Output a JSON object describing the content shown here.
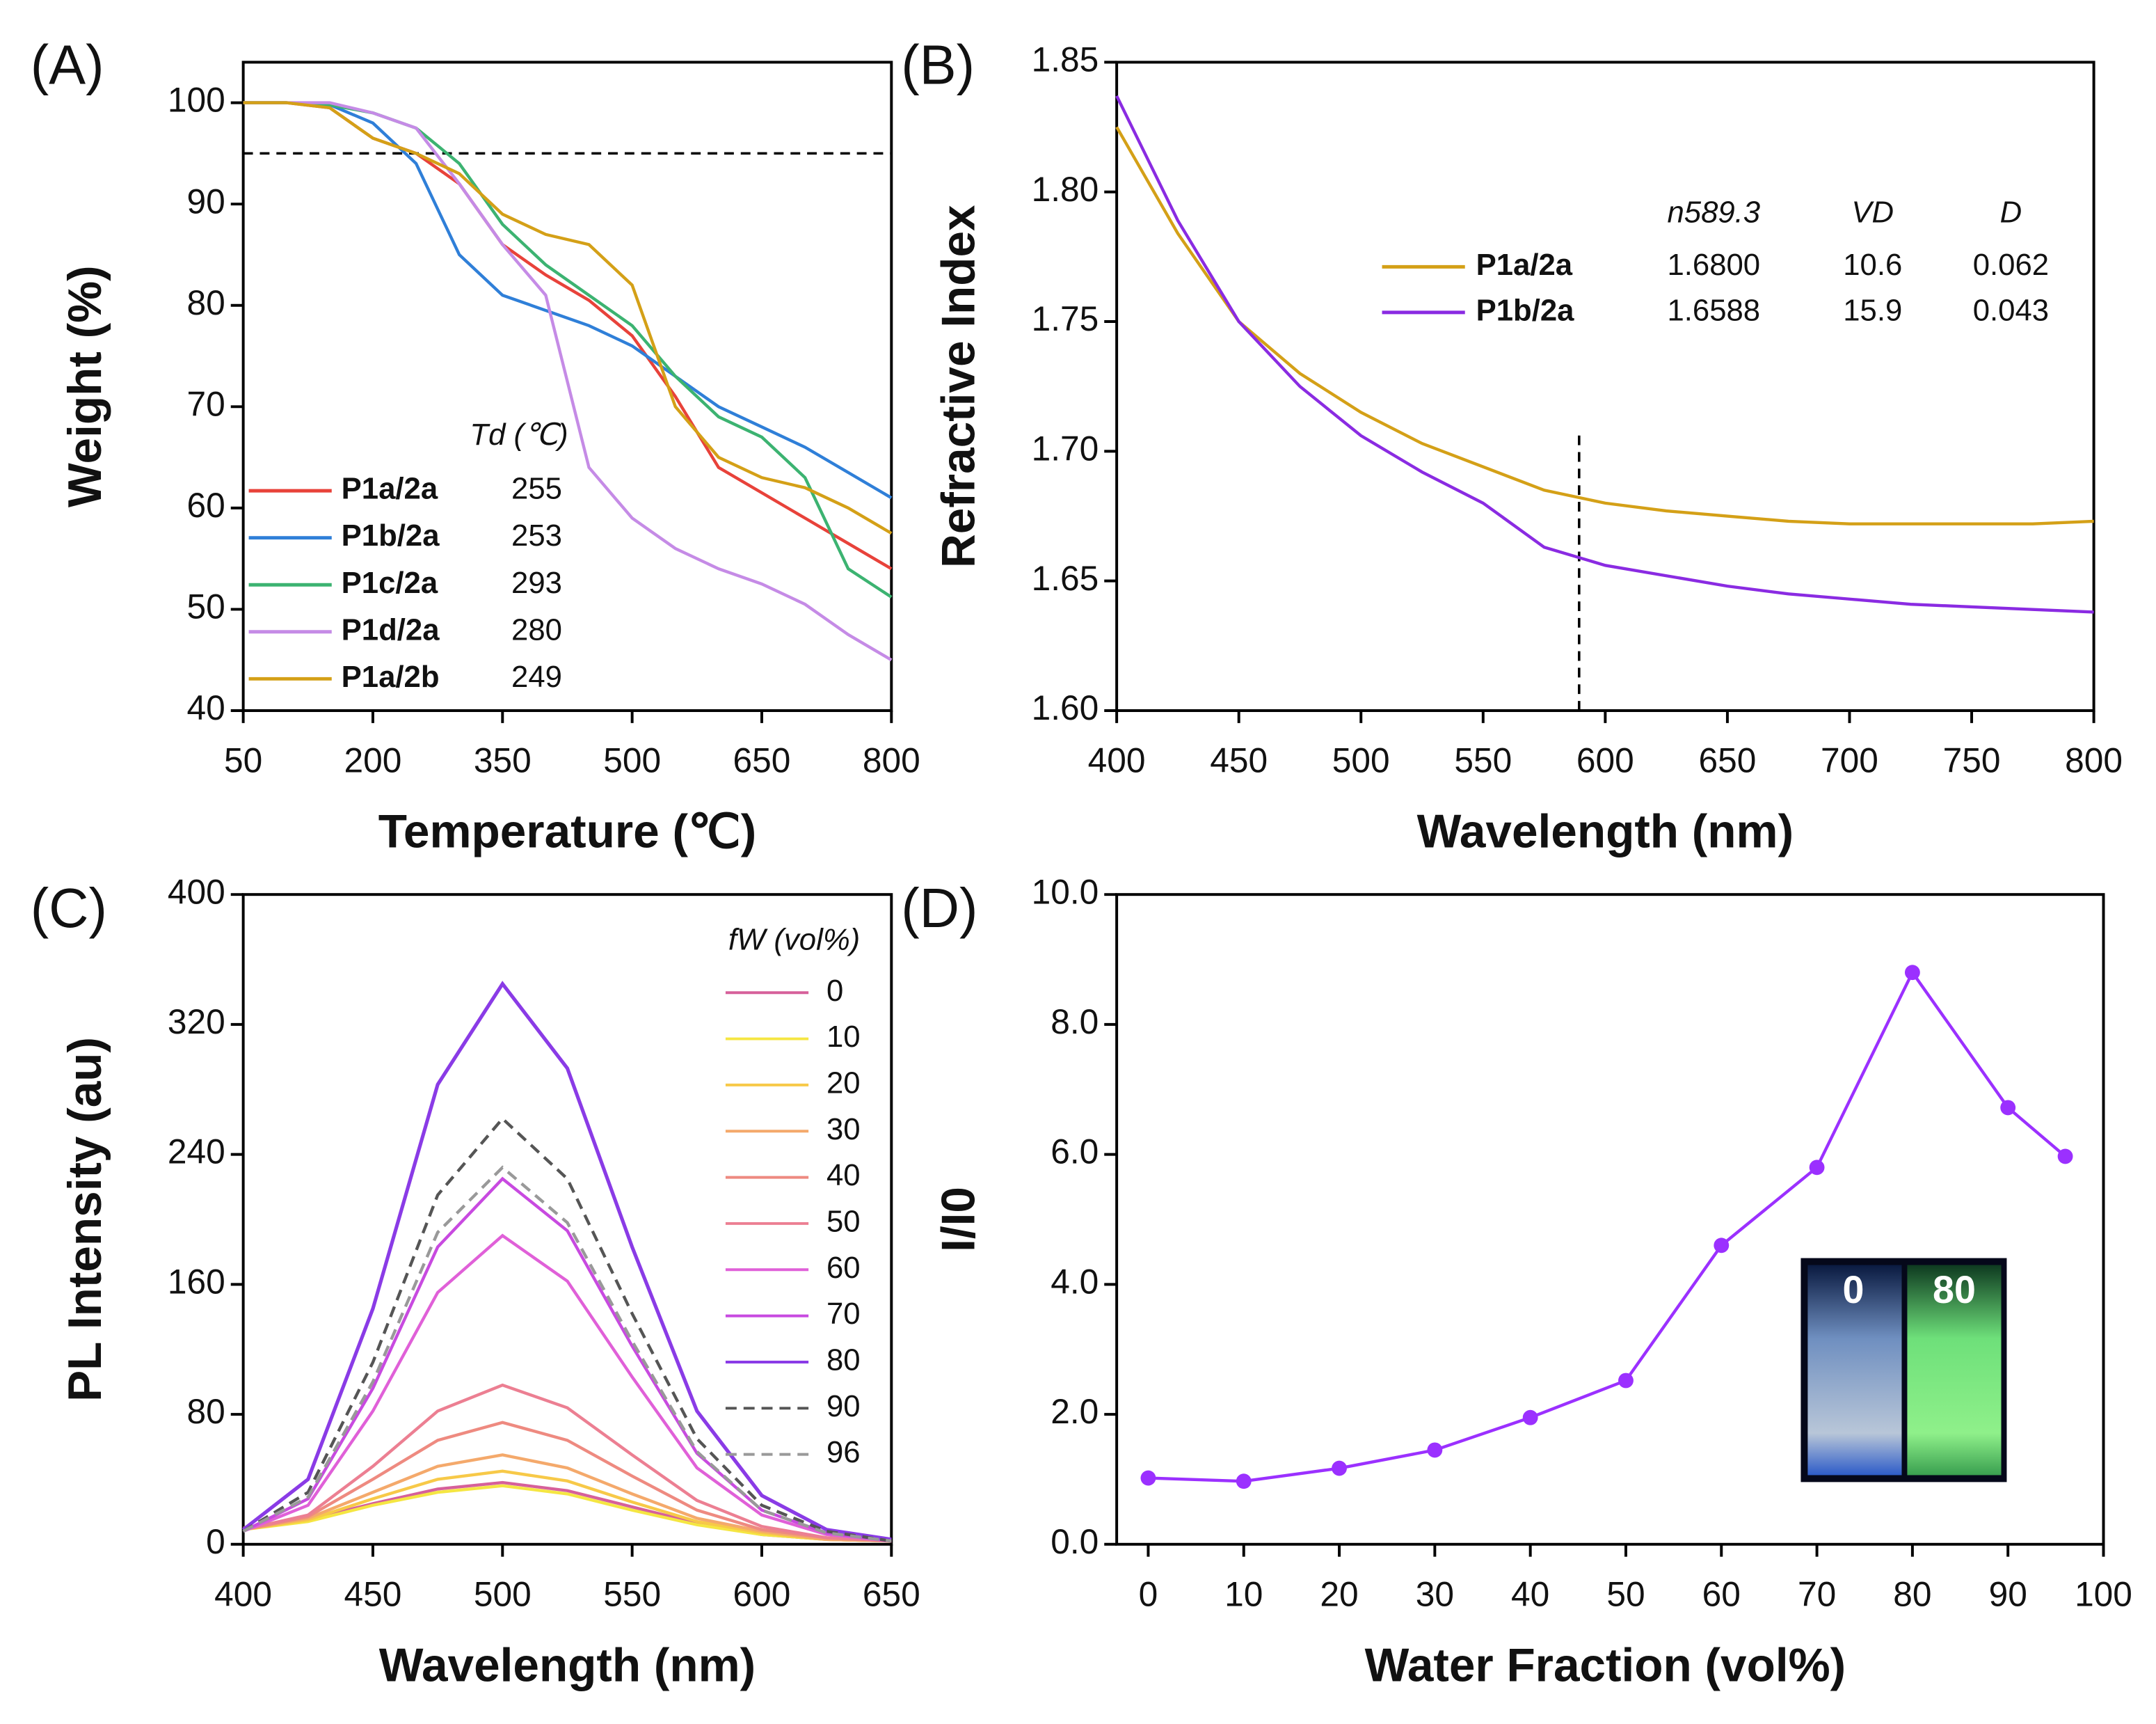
{
  "chart_data": [
    {
      "type": "line",
      "panel_label": "(A)",
      "x_label": "Temperature (℃)",
      "y_label": "Weight (%)",
      "legend_title": "Td (℃)",
      "xlim": [
        50,
        800
      ],
      "xticks": [
        50,
        200,
        350,
        500,
        650,
        800
      ],
      "ylim": [
        40,
        104
      ],
      "yticks": [
        40,
        50,
        60,
        70,
        80,
        90,
        100
      ],
      "reference_line": 95,
      "x": [
        50,
        100,
        150,
        200,
        250,
        300,
        350,
        400,
        450,
        500,
        550,
        600,
        650,
        700,
        750,
        800
      ],
      "series": [
        {
          "name": "P1a/2a",
          "td": 255,
          "color": "#e8423a",
          "values": [
            100,
            100,
            99.5,
            96.5,
            95,
            92,
            86,
            83,
            80.5,
            77,
            71,
            64,
            61.5,
            59,
            56.5,
            54
          ]
        },
        {
          "name": "P1b/2a",
          "td": 253,
          "color": "#2f7fd8",
          "values": [
            100,
            100,
            99.8,
            98,
            94,
            85,
            81,
            79.5,
            78,
            76,
            73,
            70,
            68,
            66,
            63.5,
            61
          ]
        },
        {
          "name": "P1c/2a",
          "td": 293,
          "color": "#3cb371",
          "values": [
            100,
            100,
            99.8,
            99,
            97.5,
            94,
            88,
            84,
            81,
            78,
            73,
            69,
            67,
            63,
            54,
            51.2
          ]
        },
        {
          "name": "P1d/2a",
          "td": 280,
          "color": "#c58be6",
          "values": [
            100,
            100,
            100,
            99,
            97.5,
            92,
            86,
            81,
            64,
            59,
            56,
            54,
            52.5,
            50.5,
            47.5,
            45
          ]
        },
        {
          "name": "P1a/2b",
          "td": 249,
          "color": "#d4a017",
          "values": [
            100,
            100,
            99.5,
            96.5,
            95,
            93,
            89,
            87,
            86,
            82,
            70,
            65,
            63,
            62,
            60,
            57.5
          ]
        }
      ]
    },
    {
      "type": "line",
      "panel_label": "(B)",
      "x_label": "Wavelength (nm)",
      "y_label": "Refractive Index",
      "xlim": [
        400,
        800
      ],
      "xticks": [
        400,
        450,
        500,
        550,
        600,
        650,
        700,
        750,
        800
      ],
      "ylim": [
        1.6,
        1.85
      ],
      "yticks": [
        {
          "value": 1.6,
          "label": "1.60"
        },
        1.65,
        {
          "value": 1.7,
          "label": "1.70"
        },
        1.75,
        {
          "value": 1.8,
          "label": "1.80"
        },
        1.85
      ],
      "vline": {
        "x": 589.3,
        "ymax": 1.707
      },
      "table_columns": [
        "n589.3",
        "VD",
        "D"
      ],
      "x": [
        400,
        425,
        450,
        475,
        500,
        525,
        550,
        575,
        600,
        625,
        650,
        675,
        700,
        725,
        750,
        775,
        800
      ],
      "series": [
        {
          "name": "P1a/2a",
          "color": "#d4a017",
          "table": [
            "1.6800",
            "10.6",
            "0.062"
          ],
          "values": [
            1.825,
            1.784,
            1.75,
            1.73,
            1.715,
            1.703,
            1.694,
            1.685,
            1.68,
            1.677,
            1.675,
            1.673,
            1.672,
            1.672,
            1.672,
            1.672,
            1.673
          ]
        },
        {
          "name": "P1b/2a",
          "color": "#8a2be2",
          "table": [
            "1.6588",
            "15.9",
            "0.043"
          ],
          "values": [
            1.837,
            1.789,
            1.75,
            1.725,
            1.706,
            1.692,
            1.68,
            1.663,
            1.656,
            1.652,
            1.648,
            1.645,
            1.643,
            1.641,
            1.64,
            1.639,
            1.638
          ]
        }
      ]
    },
    {
      "type": "line",
      "panel_label": "(C)",
      "x_label": "Wavelength (nm)",
      "y_label": "PL Intensity (au)",
      "legend_title": "fW (vol%)",
      "xlim": [
        400,
        650
      ],
      "xticks": [
        400,
        450,
        500,
        550,
        600,
        650
      ],
      "ylim": [
        0,
        400
      ],
      "yticks": [
        0,
        80,
        160,
        240,
        320,
        400
      ],
      "x": [
        400,
        425,
        450,
        475,
        500,
        525,
        550,
        575,
        600,
        625,
        650
      ],
      "series": [
        {
          "name": "0",
          "color": "#d6609a",
          "values": [
            10,
            15,
            25,
            34,
            38,
            33,
            23,
            13,
            6,
            3,
            2
          ]
        },
        {
          "name": "10",
          "color": "#f5e642",
          "values": [
            9,
            14,
            24,
            32,
            36,
            31,
            21,
            12,
            6,
            3,
            2
          ]
        },
        {
          "name": "20",
          "color": "#f7c948",
          "values": [
            9,
            15,
            28,
            40,
            45,
            39,
            26,
            14,
            7,
            3,
            2
          ]
        },
        {
          "name": "30",
          "color": "#f4a96b",
          "values": [
            9,
            16,
            32,
            48,
            55,
            47,
            31,
            16,
            8,
            3,
            2
          ]
        },
        {
          "name": "40",
          "color": "#ee8a80",
          "values": [
            9,
            17,
            40,
            64,
            75,
            64,
            42,
            21,
            9,
            4,
            2
          ]
        },
        {
          "name": "50",
          "color": "#ec7f92",
          "values": [
            9,
            18,
            48,
            82,
            98,
            84,
            55,
            27,
            11,
            4,
            2
          ]
        },
        {
          "name": "60",
          "color": "#e060d8",
          "values": [
            8,
            24,
            82,
            155,
            190,
            162,
            103,
            47,
            18,
            6,
            2
          ]
        },
        {
          "name": "70",
          "color": "#c84ae0",
          "values": [
            8,
            28,
            96,
            183,
            225,
            193,
            122,
            56,
            21,
            7,
            2
          ]
        },
        {
          "name": "80",
          "color": "#8a3be6",
          "values": [
            9,
            40,
            145,
            283,
            345,
            293,
            183,
            82,
            30,
            9,
            3
          ]
        },
        {
          "name": "90",
          "color": "#555555",
          "dashed": true,
          "values": [
            8,
            32,
            112,
            215,
            262,
            225,
            142,
            65,
            24,
            8,
            2
          ]
        },
        {
          "name": "96",
          "color": "#999999",
          "dashed": true,
          "values": [
            8,
            29,
            100,
            192,
            232,
            198,
            125,
            57,
            21,
            7,
            2
          ]
        }
      ]
    },
    {
      "type": "line",
      "panel_label": "(D)",
      "x_label": "Water Fraction (vol%)",
      "y_label": "I/I0",
      "markers": true,
      "xlim": [
        -3.3,
        100
      ],
      "xticks": [
        0,
        10,
        20,
        30,
        40,
        50,
        60,
        70,
        80,
        90,
        100
      ],
      "ylim": [
        0,
        10
      ],
      "yticks": [
        {
          "value": 0,
          "label": "0.0"
        },
        {
          "value": 2,
          "label": "2.0"
        },
        {
          "value": 4,
          "label": "4.0"
        },
        {
          "value": 6,
          "label": "6.0"
        },
        {
          "value": 8,
          "label": "8.0"
        },
        {
          "value": 10,
          "label": "10.0"
        }
      ],
      "inset_labels": [
        "0",
        "80"
      ],
      "x": [
        0,
        10,
        20,
        30,
        40,
        50,
        60,
        70,
        80,
        90,
        96
      ],
      "series": [
        {
          "name": "I/I0",
          "color": "#9b30ff",
          "values": [
            1.02,
            0.97,
            1.17,
            1.45,
            1.95,
            2.52,
            4.6,
            5.8,
            8.8,
            6.72,
            5.97
          ]
        }
      ]
    }
  ]
}
